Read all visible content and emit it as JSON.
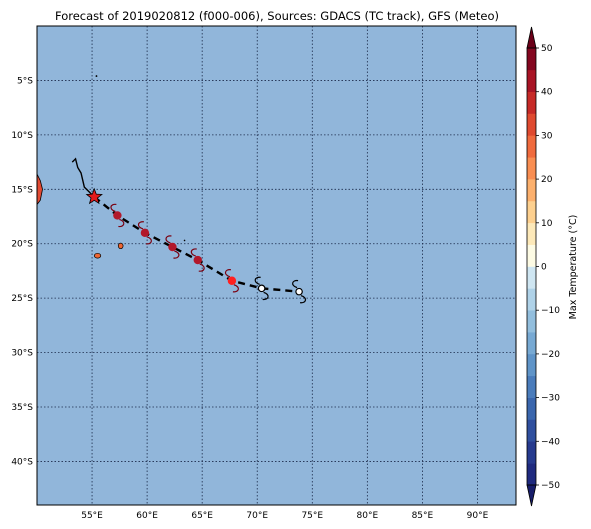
{
  "title": "Forecast of 2019020812 (f000-006), Sources: GDACS (TC track), GFS (Meteo)",
  "map": {
    "lon_range": [
      50,
      93.5
    ],
    "lat_range": [
      -44,
      0
    ],
    "ocean_color": "#91b6da",
    "grid": true,
    "lon_ticks": [
      {
        "value": 55,
        "label": "55°E"
      },
      {
        "value": 60,
        "label": "60°E"
      },
      {
        "value": 65,
        "label": "65°E"
      },
      {
        "value": 70,
        "label": "70°E"
      },
      {
        "value": 75,
        "label": "75°E"
      },
      {
        "value": 80,
        "label": "80°E"
      },
      {
        "value": 85,
        "label": "85°E"
      },
      {
        "value": 90,
        "label": "90°E"
      }
    ],
    "lat_ticks": [
      {
        "value": -5,
        "label": "5°S"
      },
      {
        "value": -10,
        "label": "10°S"
      },
      {
        "value": -15,
        "label": "15°S"
      },
      {
        "value": -20,
        "label": "20°S"
      },
      {
        "value": -25,
        "label": "25°S"
      },
      {
        "value": -30,
        "label": "30°S"
      },
      {
        "value": -35,
        "label": "35°S"
      },
      {
        "value": -40,
        "label": "40°S"
      }
    ]
  },
  "track": {
    "history": [
      [
        53.2,
        -12.5
      ],
      [
        53.5,
        -12.2
      ],
      [
        53.7,
        -13.0
      ],
      [
        54.0,
        -13.5
      ],
      [
        54.3,
        -14.8
      ],
      [
        55.2,
        -15.7
      ]
    ],
    "current_position": {
      "lon": 55.2,
      "lat": -15.7,
      "marker": "star-icon",
      "color": "#e31a1c"
    },
    "forecast": [
      {
        "lon": 57.3,
        "lat": -17.4,
        "color": "#b2182b"
      },
      {
        "lon": 59.8,
        "lat": -19.0,
        "color": "#b2182b"
      },
      {
        "lon": 62.3,
        "lat": -20.3,
        "color": "#b2182b"
      },
      {
        "lon": 64.6,
        "lat": -21.5,
        "color": "#b2182b"
      },
      {
        "lon": 67.7,
        "lat": -23.4,
        "color": "#ff2020"
      },
      {
        "lon": 70.4,
        "lat": -24.1,
        "color": "#ffffff"
      },
      {
        "lon": 73.8,
        "lat": -24.4,
        "color": "#ffffff"
      }
    ]
  },
  "land": [
    {
      "name": "madagascar-edge",
      "color": "#e34a33"
    },
    {
      "name": "reunion-island",
      "color": "#ee6633"
    },
    {
      "name": "mauritius-island",
      "color": "#ee6633"
    }
  ],
  "colorbar": {
    "label": "Max Temperature (°C)",
    "min": -50,
    "max": 50,
    "levels": [
      -50,
      -45,
      -40,
      -35,
      -30,
      -25,
      -20,
      -15,
      -10,
      -5,
      0,
      5,
      10,
      15,
      20,
      25,
      30,
      35,
      40,
      45,
      50
    ],
    "colors": [
      "#1f2a7f",
      "#263a8e",
      "#2f4f9e",
      "#3a66ad",
      "#4a7cbb",
      "#5f94c8",
      "#77a9d3",
      "#92bedd",
      "#afd2e8",
      "#cfe6f2",
      "#fdfbe4",
      "#fde9b9",
      "#fdd08f",
      "#fcb06d",
      "#f98e52",
      "#f06b3e",
      "#df4a30",
      "#c62a27",
      "#a81425",
      "#830720"
    ],
    "under_color": "#171d6a",
    "over_color": "#6a0018",
    "tick_values": [
      -50,
      -40,
      -30,
      -20,
      -10,
      0,
      10,
      20,
      30,
      40,
      50
    ],
    "tick_labels": [
      "−50",
      "−40",
      "−30",
      "−20",
      "−10",
      "0",
      "10",
      "20",
      "30",
      "40",
      "50"
    ]
  }
}
